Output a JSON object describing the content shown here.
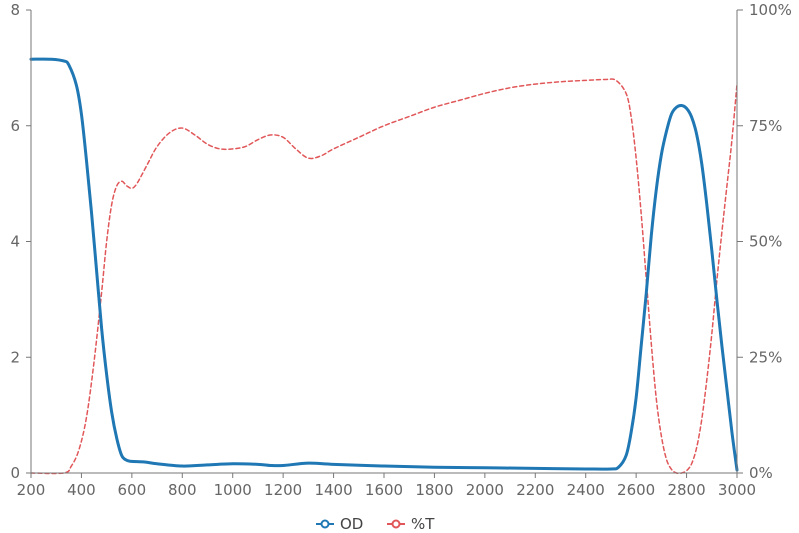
{
  "chart_data": {
    "type": "line",
    "title": "",
    "xlabel": "",
    "ylabel": "",
    "y2label": "",
    "xlim": [
      200,
      3000
    ],
    "ylim": [
      0,
      8
    ],
    "y2lim": [
      0,
      100
    ],
    "x_ticks": [
      200,
      400,
      600,
      800,
      1000,
      1200,
      1400,
      1600,
      1800,
      2000,
      2200,
      2400,
      2600,
      2800,
      3000
    ],
    "y_ticks": [
      0,
      2,
      4,
      6,
      8
    ],
    "y2_ticks": [
      {
        "value": 0,
        "label": "0%"
      },
      {
        "value": 25,
        "label": "25%"
      },
      {
        "value": 50,
        "label": "50%"
      },
      {
        "value": 75,
        "label": "75%"
      },
      {
        "value": 100,
        "label": "100%"
      }
    ],
    "grid": false,
    "legend_position": "bottom-center",
    "series": [
      {
        "name": "OD",
        "axis": "left",
        "color": "#1f77b4",
        "style": "solid",
        "points": [
          [
            200,
            7.15
          ],
          [
            280,
            7.15
          ],
          [
            330,
            7.12
          ],
          [
            350,
            7.05
          ],
          [
            380,
            6.7
          ],
          [
            400,
            6.2
          ],
          [
            420,
            5.4
          ],
          [
            440,
            4.5
          ],
          [
            460,
            3.5
          ],
          [
            480,
            2.5
          ],
          [
            500,
            1.7
          ],
          [
            520,
            1.05
          ],
          [
            540,
            0.6
          ],
          [
            560,
            0.3
          ],
          [
            580,
            0.22
          ],
          [
            600,
            0.2
          ],
          [
            650,
            0.19
          ],
          [
            700,
            0.16
          ],
          [
            800,
            0.12
          ],
          [
            900,
            0.14
          ],
          [
            1000,
            0.16
          ],
          [
            1100,
            0.15
          ],
          [
            1150,
            0.13
          ],
          [
            1200,
            0.13
          ],
          [
            1300,
            0.17
          ],
          [
            1400,
            0.15
          ],
          [
            1600,
            0.12
          ],
          [
            1800,
            0.1
          ],
          [
            2000,
            0.09
          ],
          [
            2200,
            0.08
          ],
          [
            2400,
            0.07
          ],
          [
            2500,
            0.07
          ],
          [
            2530,
            0.1
          ],
          [
            2560,
            0.3
          ],
          [
            2580,
            0.7
          ],
          [
            2600,
            1.3
          ],
          [
            2620,
            2.2
          ],
          [
            2640,
            3.1
          ],
          [
            2660,
            4.1
          ],
          [
            2680,
            4.9
          ],
          [
            2700,
            5.5
          ],
          [
            2720,
            5.9
          ],
          [
            2740,
            6.2
          ],
          [
            2760,
            6.32
          ],
          [
            2780,
            6.35
          ],
          [
            2800,
            6.3
          ],
          [
            2820,
            6.15
          ],
          [
            2840,
            5.85
          ],
          [
            2860,
            5.35
          ],
          [
            2880,
            4.65
          ],
          [
            2900,
            3.85
          ],
          [
            2920,
            3.0
          ],
          [
            2940,
            2.2
          ],
          [
            2960,
            1.45
          ],
          [
            2980,
            0.7
          ],
          [
            3000,
            0.05
          ]
        ]
      },
      {
        "name": "%T",
        "axis": "right",
        "color": "#e15759",
        "style": "dashed",
        "points": [
          [
            200,
            0
          ],
          [
            330,
            0
          ],
          [
            360,
            1.5
          ],
          [
            390,
            5
          ],
          [
            420,
            12
          ],
          [
            450,
            24
          ],
          [
            480,
            39
          ],
          [
            500,
            50
          ],
          [
            520,
            58
          ],
          [
            540,
            62
          ],
          [
            560,
            63
          ],
          [
            580,
            62
          ],
          [
            600,
            61.5
          ],
          [
            620,
            62.5
          ],
          [
            660,
            66.5
          ],
          [
            700,
            70.5
          ],
          [
            750,
            73.5
          ],
          [
            800,
            74.5
          ],
          [
            850,
            73
          ],
          [
            900,
            71
          ],
          [
            950,
            70
          ],
          [
            1000,
            70
          ],
          [
            1050,
            70.5
          ],
          [
            1100,
            72
          ],
          [
            1150,
            73
          ],
          [
            1200,
            72.5
          ],
          [
            1250,
            70
          ],
          [
            1300,
            68
          ],
          [
            1350,
            68.5
          ],
          [
            1400,
            70
          ],
          [
            1500,
            72.5
          ],
          [
            1600,
            75
          ],
          [
            1700,
            77
          ],
          [
            1800,
            79
          ],
          [
            1900,
            80.5
          ],
          [
            2000,
            82
          ],
          [
            2100,
            83.2
          ],
          [
            2200,
            84
          ],
          [
            2300,
            84.5
          ],
          [
            2400,
            84.8
          ],
          [
            2480,
            85
          ],
          [
            2520,
            84.8
          ],
          [
            2560,
            82
          ],
          [
            2580,
            77
          ],
          [
            2600,
            68
          ],
          [
            2620,
            56
          ],
          [
            2640,
            42
          ],
          [
            2660,
            28
          ],
          [
            2680,
            16
          ],
          [
            2700,
            8
          ],
          [
            2720,
            3
          ],
          [
            2740,
            0.8
          ],
          [
            2760,
            0
          ],
          [
            2780,
            0
          ],
          [
            2800,
            0.5
          ],
          [
            2820,
            2
          ],
          [
            2840,
            5.5
          ],
          [
            2860,
            11.5
          ],
          [
            2880,
            20
          ],
          [
            2900,
            30
          ],
          [
            2920,
            41.5
          ],
          [
            2940,
            52
          ],
          [
            2960,
            62
          ],
          [
            2980,
            72
          ],
          [
            3000,
            84
          ]
        ]
      }
    ]
  }
}
